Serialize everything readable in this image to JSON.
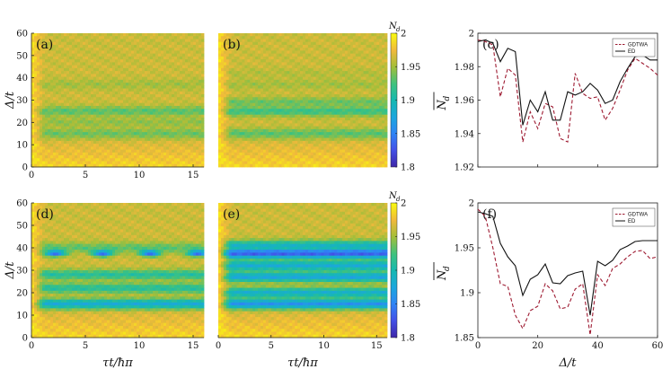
{
  "chart_data": [
    {
      "id": "a",
      "type": "heatmap",
      "panel_label": "(a)",
      "xlabel": "",
      "ylabel": "Δ/t",
      "xlim": [
        0,
        16
      ],
      "ylim": [
        0,
        60
      ],
      "xticks": [
        "0",
        "5",
        "10",
        "15"
      ],
      "yticks": [
        "0",
        "10",
        "20",
        "30",
        "40",
        "50",
        "60"
      ],
      "z_range": [
        1.8,
        2.0
      ],
      "bands": [
        {
          "delta": 15,
          "value": 1.935
        },
        {
          "delta": 25,
          "value": 1.93
        },
        {
          "delta": 20,
          "value": 1.945
        },
        {
          "delta": 37,
          "value": 1.95
        }
      ],
      "pulses": []
    },
    {
      "id": "b",
      "type": "heatmap",
      "panel_label": "(b)",
      "xlabel": "",
      "ylabel": "",
      "xlim": [
        0,
        16
      ],
      "ylim": [
        0,
        60
      ],
      "xticks": [],
      "yticks": [],
      "z_range": [
        1.8,
        2.0
      ],
      "bands": [
        {
          "delta": 15,
          "value": 1.93
        },
        {
          "delta": 25,
          "value": 1.92
        },
        {
          "delta": 29,
          "value": 1.935
        },
        {
          "delta": 37,
          "value": 1.95
        },
        {
          "delta": 42,
          "value": 1.955
        }
      ],
      "pulses": []
    },
    {
      "id": "cb1",
      "type": "colorbar",
      "title": "N_d",
      "range": [
        1.8,
        2.0
      ],
      "ticks": [
        "2",
        "1.95",
        "1.9",
        "1.85",
        "1.8"
      ]
    },
    {
      "id": "c",
      "type": "line",
      "panel_label": "(c)",
      "xlabel": "",
      "ylabel": "N_d (time-averaged)",
      "xlim": [
        0,
        60
      ],
      "ylim": [
        1.92,
        2.0
      ],
      "xticks": [],
      "yticks": [
        "1.92",
        "1.94",
        "1.96",
        "1.98",
        "2"
      ],
      "legend_position": "top-right",
      "series": [
        {
          "name": "GDTWA",
          "style": "dashed",
          "color": "#9e1b32",
          "x": [
            0,
            2.5,
            5,
            7.5,
            10,
            12.5,
            15,
            17.5,
            20,
            22.5,
            25,
            27.5,
            30,
            32.5,
            35,
            37.5,
            40,
            42.5,
            45,
            47.5,
            50,
            52.5,
            55,
            57.5,
            60
          ],
          "values": [
            1.996,
            1.995,
            1.993,
            1.962,
            1.979,
            1.975,
            1.935,
            1.953,
            1.943,
            1.958,
            1.956,
            1.937,
            1.935,
            1.976,
            1.964,
            1.961,
            1.962,
            1.948,
            1.955,
            1.966,
            1.978,
            1.985,
            1.982,
            1.979,
            1.975
          ]
        },
        {
          "name": "ED",
          "style": "solid",
          "color": "#111111",
          "x": [
            0,
            2.5,
            5,
            7.5,
            10,
            12.5,
            15,
            17.5,
            20,
            22.5,
            25,
            27.5,
            30,
            32.5,
            35,
            37.5,
            40,
            42.5,
            45,
            47.5,
            50,
            52.5,
            55,
            57.5,
            60
          ],
          "values": [
            1.995,
            1.996,
            1.994,
            1.983,
            1.991,
            1.989,
            1.945,
            1.96,
            1.953,
            1.965,
            1.948,
            1.948,
            1.965,
            1.963,
            1.965,
            1.97,
            1.966,
            1.958,
            1.96,
            1.971,
            1.979,
            1.986,
            1.987,
            1.984,
            1.984
          ]
        }
      ]
    },
    {
      "id": "d",
      "type": "heatmap",
      "panel_label": "(d)",
      "xlabel": "τt/ħπ",
      "ylabel": "Δ/t",
      "xlim": [
        0,
        16
      ],
      "ylim": [
        0,
        60
      ],
      "xticks": [
        "0",
        "5",
        "10",
        "15"
      ],
      "yticks": [
        "0",
        "10",
        "20",
        "30",
        "40",
        "50",
        "60"
      ],
      "z_range": [
        1.8,
        2.0
      ],
      "bands": [
        {
          "delta": 15,
          "value": 1.88
        },
        {
          "delta": 22,
          "value": 1.91
        },
        {
          "delta": 28,
          "value": 1.91
        },
        {
          "delta": 40,
          "value": 1.93
        }
      ],
      "pulses": [
        {
          "delta": 37.5,
          "value": 1.83,
          "period": 4.4,
          "phase": 2.2
        }
      ]
    },
    {
      "id": "e",
      "type": "heatmap",
      "panel_label": "(e)",
      "xlabel": "τt/ħπ",
      "ylabel": "",
      "xlim": [
        0,
        16
      ],
      "ylim": [
        0,
        60
      ],
      "xticks": [
        "0",
        "5",
        "10",
        "15"
      ],
      "yticks": [],
      "z_range": [
        1.8,
        2.0
      ],
      "bands": [
        {
          "delta": 15,
          "value": 1.86
        },
        {
          "delta": 20,
          "value": 1.885
        },
        {
          "delta": 27,
          "value": 1.875
        },
        {
          "delta": 32,
          "value": 1.88
        },
        {
          "delta": 37.5,
          "value": 1.83
        },
        {
          "delta": 41,
          "value": 1.89
        }
      ],
      "pulses": []
    },
    {
      "id": "cb2",
      "type": "colorbar",
      "title": "N_d",
      "range": [
        1.8,
        2.0
      ],
      "ticks": [
        "2",
        "1.95",
        "1.9",
        "1.85",
        "1.8"
      ]
    },
    {
      "id": "f",
      "type": "line",
      "panel_label": "(f)",
      "xlabel": "Δ/t",
      "ylabel": "N_d (time-averaged)",
      "xlim": [
        0,
        60
      ],
      "ylim": [
        1.85,
        2.0
      ],
      "xticks": [
        "0",
        "20",
        "40",
        "60"
      ],
      "yticks": [
        "1.85",
        "1.9",
        "1.95",
        "2"
      ],
      "legend_position": "top-right",
      "series": [
        {
          "name": "GDTWA",
          "style": "dashed",
          "color": "#9e1b32",
          "x": [
            0,
            2.5,
            5,
            7.5,
            10,
            12.5,
            15,
            17.5,
            20,
            22.5,
            25,
            27.5,
            30,
            32.5,
            35,
            37.5,
            40,
            42.5,
            45,
            47.5,
            50,
            52.5,
            55,
            57.5,
            60
          ],
          "values": [
            1.993,
            1.985,
            1.95,
            1.91,
            1.907,
            1.875,
            1.86,
            1.88,
            1.885,
            1.91,
            1.902,
            1.882,
            1.884,
            1.904,
            1.91,
            1.853,
            1.92,
            1.908,
            1.927,
            1.932,
            1.94,
            1.946,
            1.947,
            1.938,
            1.94
          ]
        },
        {
          "name": "ED",
          "style": "solid",
          "color": "#111111",
          "x": [
            0,
            2.5,
            5,
            7.5,
            10,
            12.5,
            15,
            17.5,
            20,
            22.5,
            25,
            27.5,
            30,
            32.5,
            35,
            37.5,
            40,
            42.5,
            45,
            47.5,
            50,
            52.5,
            55,
            57.5,
            60
          ],
          "values": [
            1.99,
            1.988,
            1.985,
            1.955,
            1.94,
            1.93,
            1.897,
            1.915,
            1.92,
            1.932,
            1.911,
            1.91,
            1.919,
            1.922,
            1.924,
            1.875,
            1.935,
            1.93,
            1.936,
            1.948,
            1.952,
            1.957,
            1.958,
            1.958,
            1.958
          ]
        }
      ]
    }
  ]
}
